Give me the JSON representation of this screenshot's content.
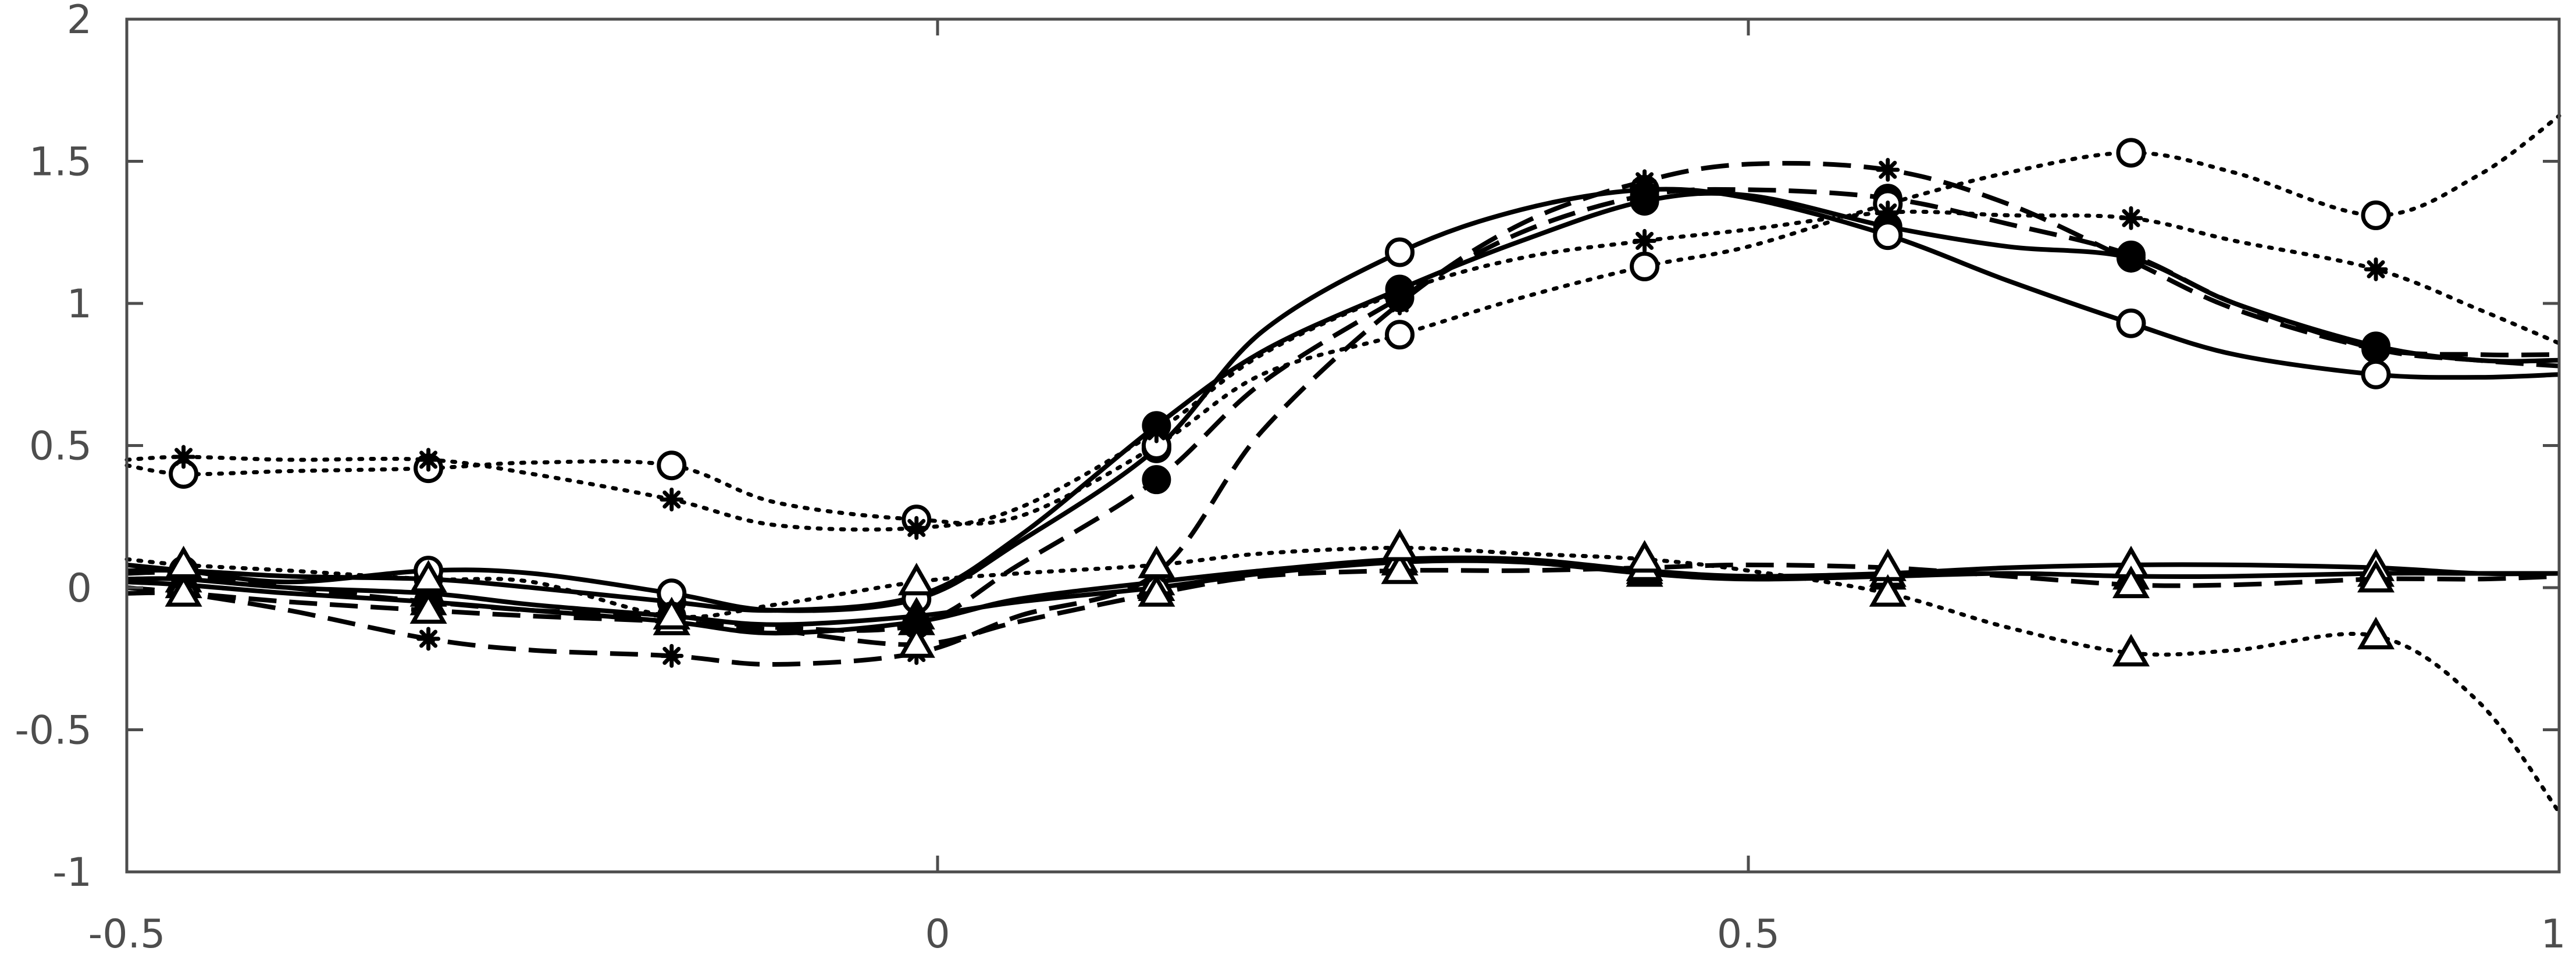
{
  "chart_data": {
    "type": "line",
    "title": "",
    "xlabel": "",
    "ylabel": "",
    "xlim": [
      -0.5,
      1
    ],
    "ylim": [
      -1,
      2
    ],
    "x_ticks": [
      -0.5,
      0,
      0.5,
      1
    ],
    "x_tick_labels": [
      "-0.5",
      "0",
      "0.5",
      "1"
    ],
    "y_ticks": [
      -1,
      -0.5,
      0,
      0.5,
      1,
      1.5,
      2
    ],
    "y_tick_labels": [
      "-1",
      "-0.5",
      "0",
      "0.5",
      "1",
      "1.5",
      "2"
    ],
    "grid": false,
    "legend": "none",
    "colors": {
      "axis": "#4d4d4d",
      "series": "#000000"
    },
    "marker_x": [
      -0.465,
      -0.314,
      -0.164,
      -0.013,
      0.135,
      0.285,
      0.436,
      0.586,
      0.736,
      0.887
    ],
    "series": [
      {
        "style": "solid",
        "marker": "circle-filled",
        "x": [
          -0.5,
          -0.465,
          -0.4,
          -0.314,
          -0.25,
          -0.164,
          -0.1,
          -0.013,
          0.05,
          0.135,
          0.2,
          0.285,
          0.36,
          0.436,
          0.5,
          0.586,
          0.66,
          0.736,
          0.8,
          0.887,
          0.95,
          1.0
        ],
        "y": [
          0.06,
          0.06,
          0.04,
          0.03,
          0.0,
          -0.05,
          -0.08,
          -0.03,
          0.18,
          0.57,
          0.83,
          1.05,
          1.22,
          1.36,
          1.38,
          1.27,
          1.2,
          1.16,
          1.0,
          0.85,
          0.8,
          0.8
        ]
      },
      {
        "style": "solid",
        "marker": "circle-open",
        "x": [
          -0.5,
          -0.465,
          -0.4,
          -0.314,
          -0.25,
          -0.164,
          -0.1,
          -0.013,
          0.05,
          0.135,
          0.2,
          0.285,
          0.36,
          0.436,
          0.5,
          0.586,
          0.66,
          0.736,
          0.8,
          0.887,
          0.95,
          1.0
        ],
        "y": [
          0.08,
          0.06,
          0.02,
          0.06,
          0.05,
          -0.02,
          -0.08,
          -0.04,
          0.16,
          0.49,
          0.9,
          1.18,
          1.33,
          1.4,
          1.37,
          1.24,
          1.08,
          0.93,
          0.82,
          0.75,
          0.74,
          0.75
        ]
      },
      {
        "style": "solid",
        "marker": "triangle-filled",
        "x": [
          -0.5,
          -0.465,
          -0.4,
          -0.314,
          -0.25,
          -0.164,
          -0.1,
          -0.013,
          0.05,
          0.135,
          0.2,
          0.285,
          0.36,
          0.436,
          0.5,
          0.586,
          0.66,
          0.736,
          0.8,
          0.887,
          0.95,
          1.0
        ],
        "y": [
          0.03,
          0.03,
          0.0,
          -0.02,
          -0.06,
          -0.1,
          -0.13,
          -0.1,
          -0.05,
          0.0,
          0.05,
          0.09,
          0.09,
          0.05,
          0.03,
          0.04,
          0.05,
          0.04,
          0.04,
          0.05,
          0.05,
          0.05
        ]
      },
      {
        "style": "solid",
        "marker": "triangle-open",
        "x": [
          -0.5,
          -0.465,
          -0.4,
          -0.314,
          -0.25,
          -0.164,
          -0.1,
          -0.013,
          0.05,
          0.135,
          0.2,
          0.285,
          0.36,
          0.436,
          0.5,
          0.586,
          0.66,
          0.736,
          0.8,
          0.887,
          0.95,
          1.0
        ],
        "y": [
          0.02,
          0.01,
          -0.02,
          -0.05,
          -0.08,
          -0.12,
          -0.16,
          -0.12,
          -0.04,
          0.02,
          0.06,
          0.1,
          0.1,
          0.06,
          0.04,
          0.05,
          0.07,
          0.08,
          0.08,
          0.07,
          0.05,
          0.05
        ]
      },
      {
        "style": "dashed",
        "marker": "circle-filled",
        "x": [
          -0.5,
          -0.465,
          -0.4,
          -0.314,
          -0.25,
          -0.164,
          -0.1,
          -0.013,
          0.05,
          0.135,
          0.2,
          0.285,
          0.36,
          0.436,
          0.5,
          0.586,
          0.66,
          0.736,
          0.8,
          0.887,
          0.95,
          1.0
        ],
        "y": [
          0.05,
          0.05,
          0.0,
          -0.05,
          -0.08,
          -0.1,
          -0.14,
          -0.13,
          0.08,
          0.38,
          0.72,
          1.02,
          1.25,
          1.38,
          1.4,
          1.37,
          1.28,
          1.17,
          1.0,
          0.84,
          0.8,
          0.78
        ]
      },
      {
        "style": "dashed",
        "marker": "star",
        "x": [
          -0.5,
          -0.465,
          -0.4,
          -0.314,
          -0.25,
          -0.164,
          -0.1,
          -0.013,
          0.05,
          0.135,
          0.2,
          0.285,
          0.36,
          0.436,
          0.5,
          0.586,
          0.66,
          0.736,
          0.8,
          0.887,
          0.95,
          1.0
        ],
        "y": [
          0.0,
          -0.02,
          -0.08,
          -0.18,
          -0.22,
          -0.24,
          -0.27,
          -0.23,
          -0.1,
          0.05,
          0.55,
          1.0,
          1.28,
          1.43,
          1.49,
          1.47,
          1.35,
          1.15,
          0.98,
          0.84,
          0.82,
          0.82
        ]
      },
      {
        "style": "dashed",
        "marker": "triangle-open",
        "x": [
          -0.5,
          -0.465,
          -0.4,
          -0.314,
          -0.25,
          -0.164,
          -0.1,
          -0.013,
          0.05,
          0.135,
          0.2,
          0.285,
          0.36,
          0.436,
          0.5,
          0.586,
          0.66,
          0.736,
          0.8,
          0.887,
          0.95,
          1.0
        ],
        "y": [
          -0.02,
          -0.02,
          -0.05,
          -0.08,
          -0.1,
          -0.12,
          -0.15,
          -0.2,
          -0.12,
          -0.02,
          0.04,
          0.06,
          0.06,
          0.07,
          0.08,
          0.07,
          0.04,
          0.01,
          0.01,
          0.03,
          0.03,
          0.04
        ]
      },
      {
        "style": "dotted",
        "marker": "circle-open",
        "x": [
          -0.5,
          -0.465,
          -0.4,
          -0.314,
          -0.25,
          -0.164,
          -0.1,
          -0.013,
          0.05,
          0.135,
          0.2,
          0.285,
          0.36,
          0.436,
          0.5,
          0.586,
          0.66,
          0.736,
          0.8,
          0.887,
          0.95,
          1.0
        ],
        "y": [
          0.43,
          0.4,
          0.41,
          0.42,
          0.44,
          0.43,
          0.3,
          0.24,
          0.25,
          0.5,
          0.75,
          0.89,
          1.02,
          1.13,
          1.2,
          1.35,
          1.46,
          1.53,
          1.46,
          1.31,
          1.45,
          1.66
        ]
      },
      {
        "style": "dotted",
        "marker": "star",
        "x": [
          -0.5,
          -0.465,
          -0.4,
          -0.314,
          -0.25,
          -0.164,
          -0.1,
          -0.013,
          0.05,
          0.135,
          0.2,
          0.285,
          0.36,
          0.436,
          0.5,
          0.586,
          0.66,
          0.736,
          0.8,
          0.887,
          0.95,
          1.0
        ],
        "y": [
          0.45,
          0.46,
          0.45,
          0.45,
          0.4,
          0.31,
          0.22,
          0.21,
          0.28,
          0.55,
          0.82,
          1.04,
          1.16,
          1.22,
          1.26,
          1.32,
          1.31,
          1.3,
          1.22,
          1.12,
          0.98,
          0.86
        ]
      },
      {
        "style": "dotted",
        "marker": "triangle-open",
        "x": [
          -0.5,
          -0.465,
          -0.4,
          -0.314,
          -0.25,
          -0.164,
          -0.1,
          -0.013,
          0.05,
          0.135,
          0.2,
          0.285,
          0.36,
          0.436,
          0.5,
          0.586,
          0.66,
          0.736,
          0.8,
          0.887,
          0.95,
          1.0
        ],
        "y": [
          0.1,
          0.08,
          0.06,
          0.03,
          0.02,
          -0.1,
          -0.06,
          0.02,
          0.05,
          0.08,
          0.12,
          0.14,
          0.12,
          0.1,
          0.06,
          -0.02,
          -0.14,
          -0.23,
          -0.22,
          -0.17,
          -0.4,
          -0.79
        ]
      }
    ]
  }
}
